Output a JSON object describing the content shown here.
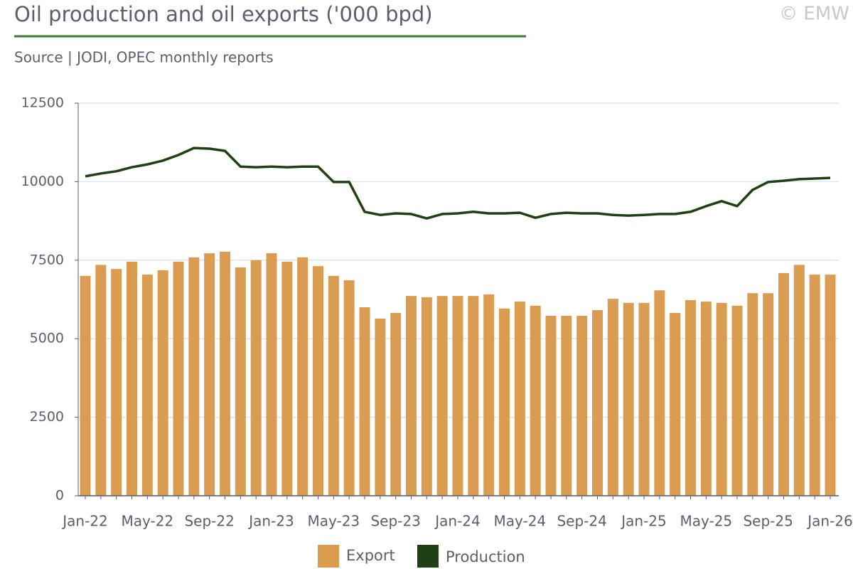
{
  "chart_data": {
    "type": "bar-line",
    "title": "Oil production and oil exports ('000 bpd)",
    "subtitle": "Source | JODI, OPEC monthly reports",
    "watermark": "© EMW",
    "categories": [
      "Jan-22",
      null,
      null,
      null,
      "May-22",
      null,
      null,
      null,
      "Sep-22",
      null,
      null,
      null,
      "Jan-23",
      null,
      null,
      null,
      "May-23",
      null,
      null,
      null,
      "Sep-23",
      null,
      null,
      null,
      "Jan-24",
      null,
      null,
      null,
      "May-24",
      null,
      null,
      null,
      "Sep-24",
      null,
      null,
      null,
      "Jan-25",
      null,
      null,
      null,
      "May-25",
      null,
      null,
      null,
      "Sep-25",
      null,
      null,
      null,
      "Jan-26"
    ],
    "series": [
      {
        "name": "Export",
        "kind": "bar",
        "color": "#d99c51",
        "values": [
          7000,
          7350,
          7220,
          7450,
          7040,
          7180,
          7450,
          7590,
          7720,
          7770,
          7270,
          7500,
          7720,
          7450,
          7590,
          7310,
          7000,
          6860,
          6000,
          5640,
          5820,
          6360,
          6320,
          6360,
          6360,
          6360,
          6410,
          5960,
          6180,
          6050,
          5730,
          5730,
          5730,
          5910,
          6270,
          6140,
          6140,
          6540,
          5820,
          6230,
          6180,
          6140,
          6050,
          6450,
          6450,
          7090,
          7350,
          7040,
          7040
        ]
      },
      {
        "name": "Production",
        "kind": "line",
        "color": "#1e4012",
        "values": [
          10170,
          10260,
          10330,
          10460,
          10550,
          10670,
          10850,
          11070,
          11050,
          10980,
          10480,
          10460,
          10480,
          10460,
          10480,
          10480,
          9990,
          9990,
          9040,
          8940,
          8990,
          8970,
          8830,
          8970,
          8990,
          9040,
          8990,
          8990,
          9010,
          8850,
          8970,
          9010,
          8990,
          8990,
          8940,
          8920,
          8940,
          8970,
          8970,
          9040,
          9220,
          9380,
          9220,
          9740,
          9990,
          10030,
          10080,
          10100,
          10120
        ]
      }
    ],
    "ylim": [
      0,
      12500
    ],
    "yticks": [
      0,
      2500,
      5000,
      7500,
      10000,
      12500
    ],
    "grid": true
  }
}
